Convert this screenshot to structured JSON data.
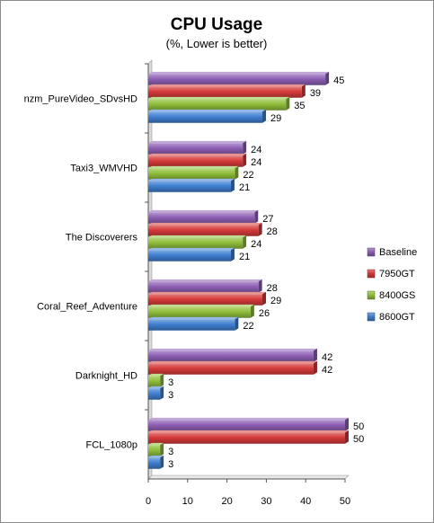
{
  "chart_data": {
    "type": "bar",
    "orientation": "horizontal",
    "title": "CPU Usage",
    "subtitle": "(%, Lower is better)",
    "xlabel": "",
    "ylabel": "",
    "xlim": [
      0,
      50
    ],
    "xticks": [
      0,
      10,
      20,
      30,
      40,
      50
    ],
    "grid": false,
    "legend_position": "right",
    "categories": [
      "nzm_PureVideo_SDvsHD",
      "Taxi3_WMVHD",
      "The Discoverers",
      "Coral_Reef_Adventure",
      "Darknight_HD",
      "FCL_1080p"
    ],
    "series": [
      {
        "name": "Baseline",
        "color": "#8e5fb5",
        "values": [
          45,
          24,
          27,
          28,
          42,
          50
        ]
      },
      {
        "name": "7950GT",
        "color": "#d63a3a",
        "values": [
          39,
          24,
          28,
          29,
          42,
          50
        ]
      },
      {
        "name": "8400GS",
        "color": "#8fbf3a",
        "values": [
          35,
          22,
          24,
          26,
          3,
          3
        ]
      },
      {
        "name": "8600GT",
        "color": "#3f7fd1",
        "values": [
          29,
          21,
          21,
          22,
          3,
          3
        ]
      }
    ]
  }
}
